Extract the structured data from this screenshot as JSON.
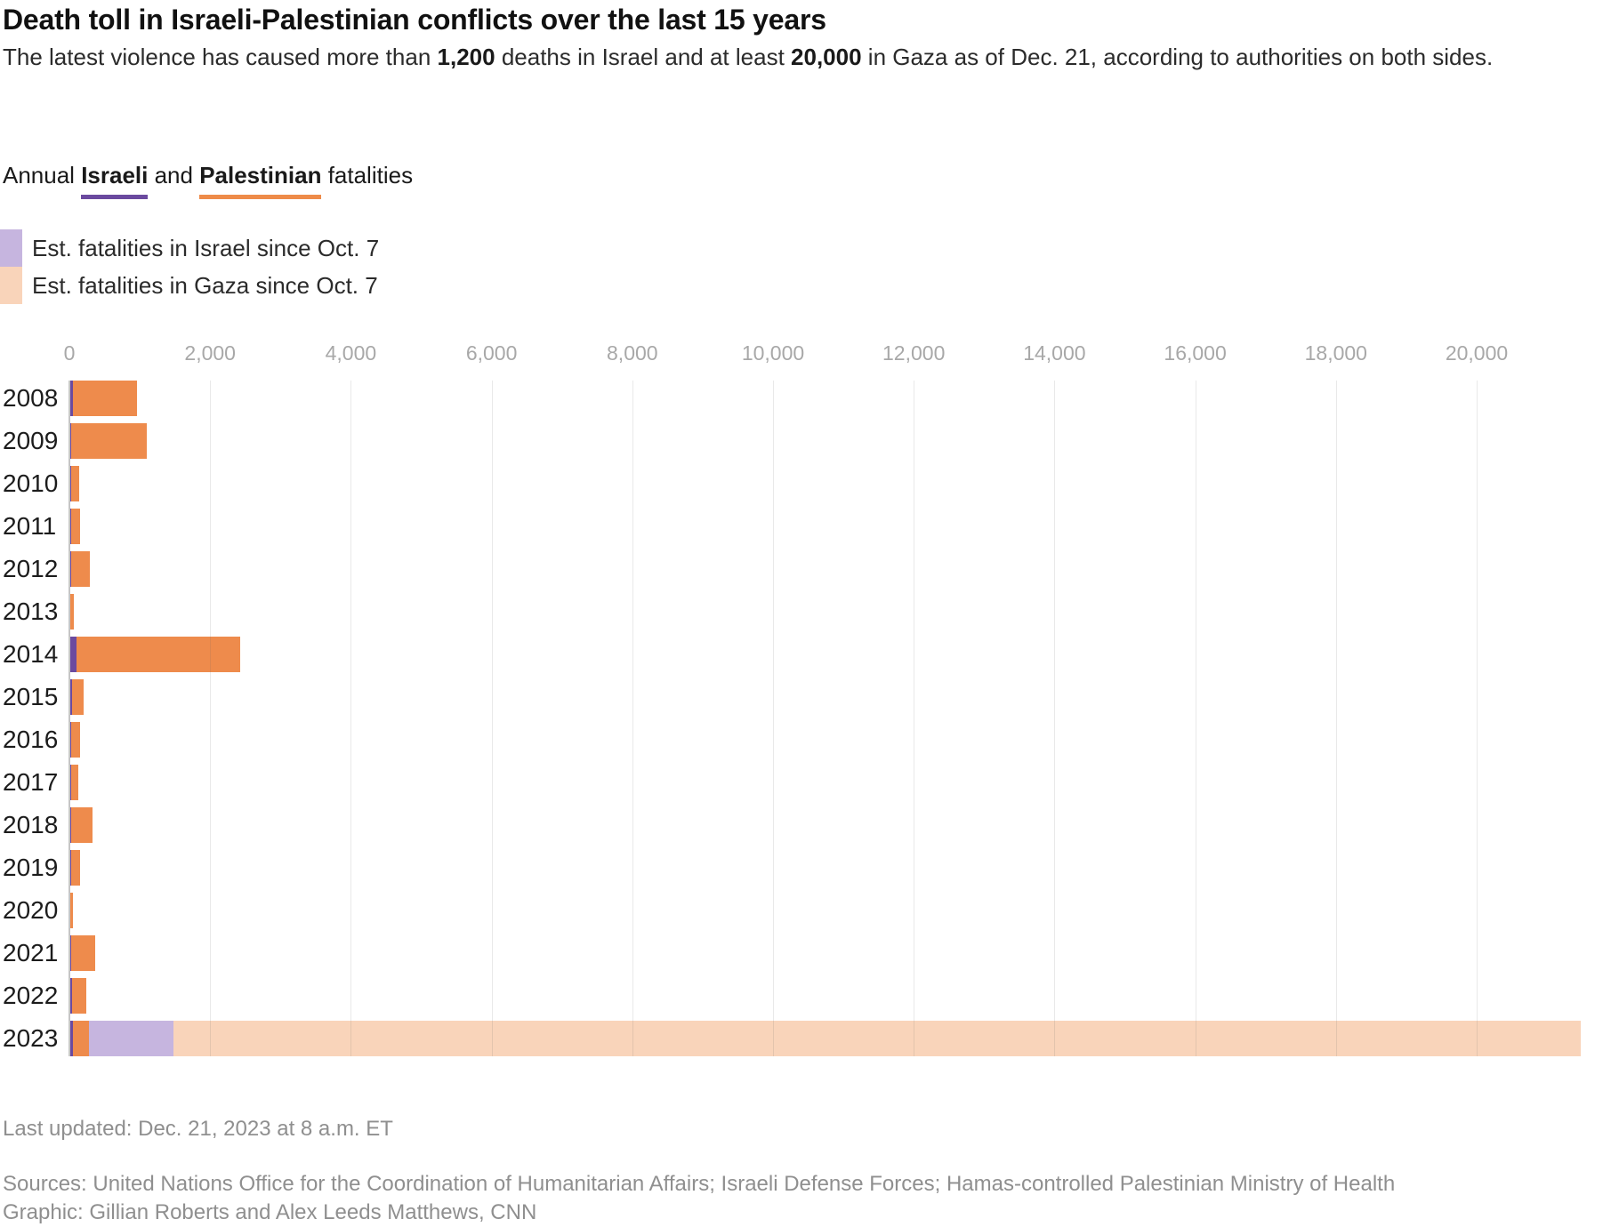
{
  "header": {
    "title": "Death toll in Israeli-Palestinian conflicts over the last 15 years",
    "subtitle_parts": {
      "pre": "The latest violence has caused more than ",
      "israel_count": "1,200",
      "mid": " deaths in Israel and at least ",
      "gaza_count": "20,000",
      "post": " in Gaza as of Dec. 21, according to authorities on both sides."
    }
  },
  "legend_heading": {
    "pre": "Annual ",
    "israeli_word": "Israeli",
    "conj": " and ",
    "palestinian_word": "Palestinian",
    "post": " fatalities"
  },
  "legend_items": [
    {
      "label": "Est. fatalities in Israel since Oct. 7",
      "color": "#c6b5df"
    },
    {
      "label": "Est. fatalities in Gaza since Oct. 7",
      "color": "#f9d4ba"
    }
  ],
  "colors": {
    "israeli_purple": "#6b4a9f",
    "palestinian_orange": "#ee8b4c",
    "israel_oct7_light_purple": "#c6b5df",
    "gaza_oct7_light_orange": "#f9d4ba",
    "axis_label_gray": "#a8a8a8",
    "gridline_gray": "#e4e4e4",
    "text_dark": "#1a1a1a",
    "footer_gray": "#8f8f8f"
  },
  "chart_data": {
    "type": "bar",
    "orientation": "horizontal",
    "title": "Annual Israeli and Palestinian fatalities",
    "categories": [
      "2008",
      "2009",
      "2010",
      "2011",
      "2012",
      "2013",
      "2014",
      "2015",
      "2016",
      "2017",
      "2018",
      "2019",
      "2020",
      "2021",
      "2022",
      "2023"
    ],
    "series": [
      {
        "key": "israeli",
        "name": "Israeli fatalities",
        "color": "#6b4a9f",
        "values": [
          35,
          10,
          10,
          15,
          10,
          5,
          87,
          25,
          15,
          15,
          15,
          10,
          3,
          15,
          30,
          35
        ]
      },
      {
        "key": "palestinian",
        "name": "Palestinian fatalities",
        "color": "#ee8b4c",
        "values": [
          910,
          1080,
          115,
          125,
          270,
          40,
          2330,
          170,
          120,
          95,
          300,
          135,
          40,
          340,
          200,
          230
        ]
      },
      {
        "key": "israel_since_oct7",
        "name": "Est. fatalities in Israel since Oct. 7",
        "color": "#c6b5df",
        "values": [
          0,
          0,
          0,
          0,
          0,
          0,
          0,
          0,
          0,
          0,
          0,
          0,
          0,
          0,
          0,
          1200
        ]
      },
      {
        "key": "gaza_since_oct7",
        "name": "Est. fatalities in Gaza since Oct. 7",
        "color": "#f9d4ba",
        "values": [
          0,
          0,
          0,
          0,
          0,
          0,
          0,
          0,
          0,
          0,
          0,
          0,
          0,
          0,
          0,
          20000
        ]
      }
    ],
    "x_ticks": [
      0,
      2000,
      4000,
      6000,
      8000,
      10000,
      12000,
      14000,
      16000,
      18000,
      20000
    ],
    "x_tick_labels": [
      "0",
      "2,000",
      "4,000",
      "6,000",
      "8,000",
      "10,000",
      "12,000",
      "14,000",
      "16,000",
      "18,000",
      "20,000"
    ],
    "xlim": [
      0,
      22000
    ],
    "grid": "vertical-lines",
    "legend_position": "top-left"
  },
  "footer": {
    "updated": "Last updated: Dec. 21, 2023 at 8 a.m. ET",
    "sources": "Sources: United Nations Office for the Coordination of Humanitarian Affairs; Israeli Defense Forces; Hamas-controlled Palestinian Ministry of Health",
    "credit": "Graphic: Gillian Roberts and Alex Leeds Matthews, CNN"
  }
}
